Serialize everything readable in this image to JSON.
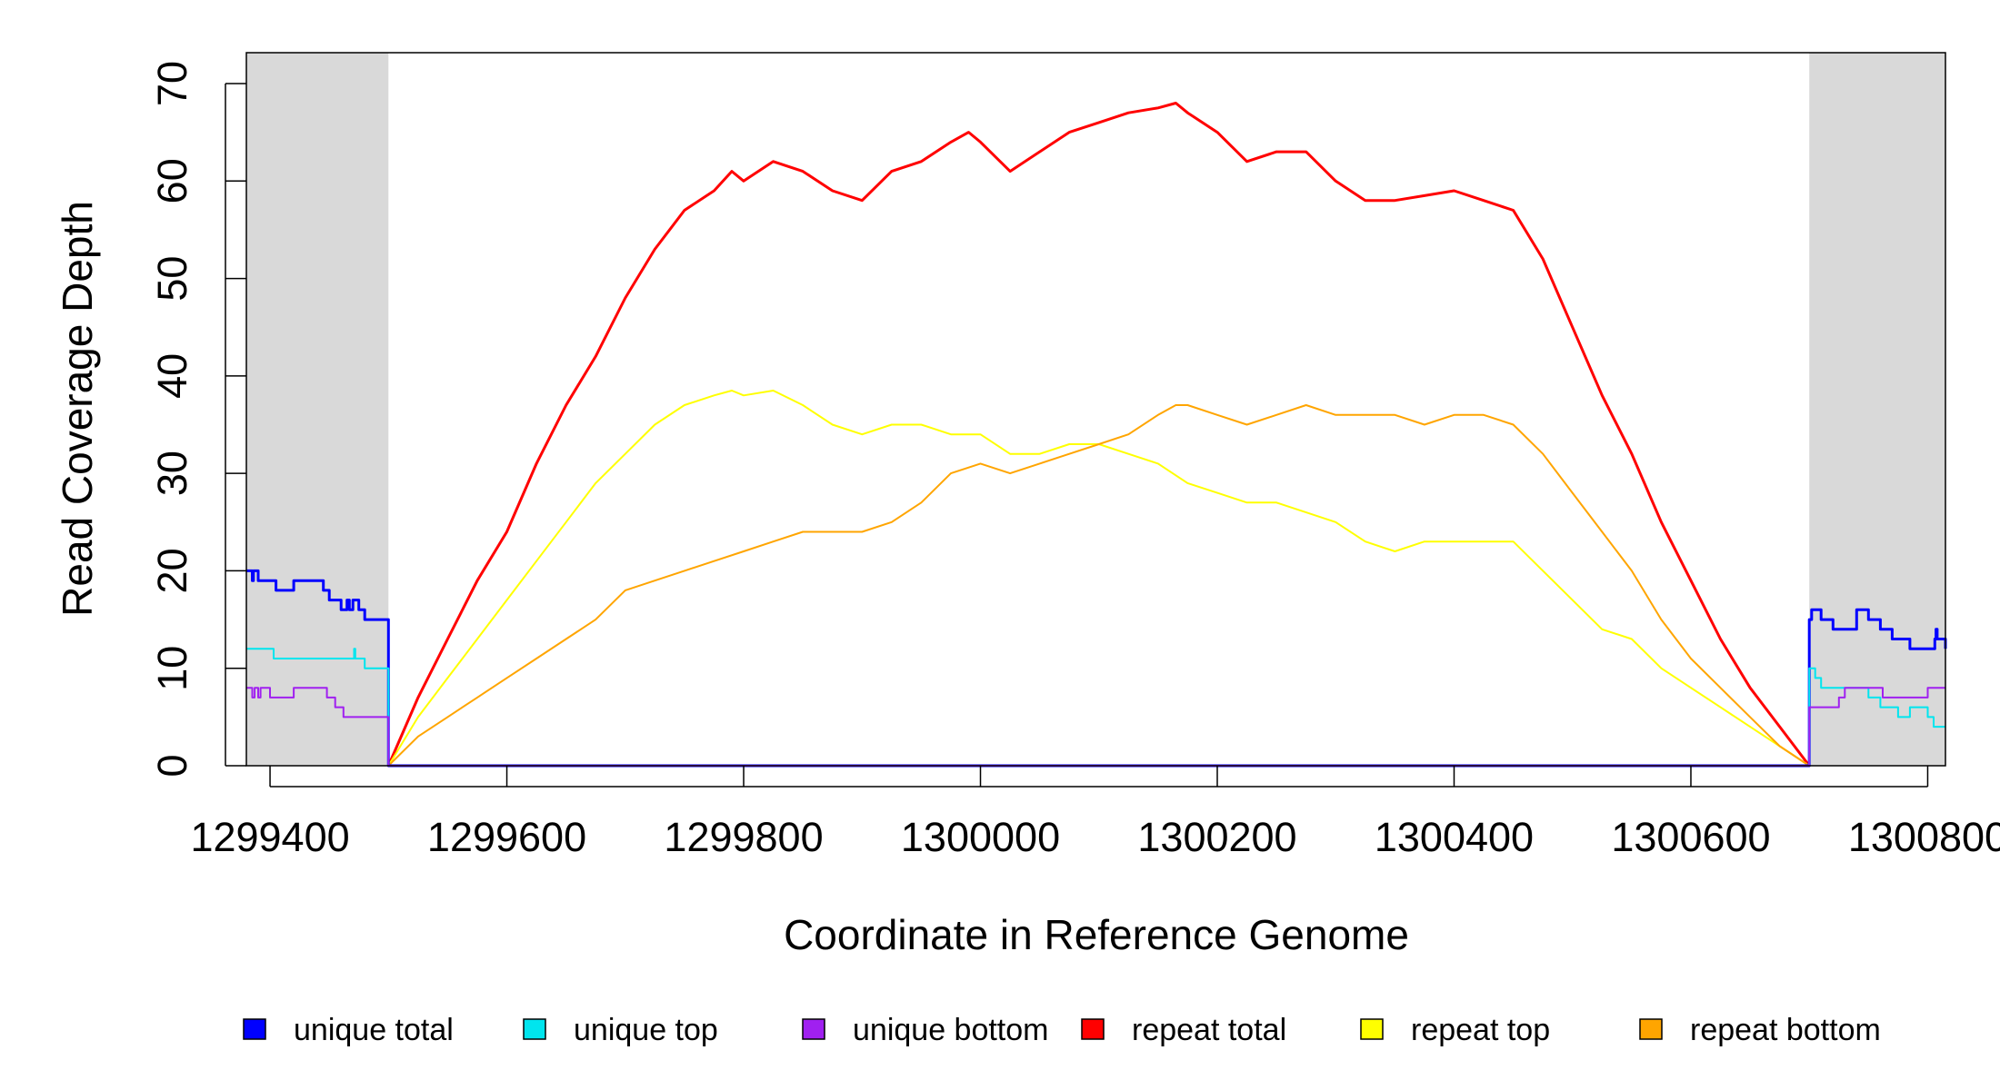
{
  "chart_data": {
    "type": "line",
    "title": "",
    "xlabel": "Coordinate in Reference Genome",
    "ylabel": "Read Coverage Depth",
    "xlim": [
      1299380,
      1300815
    ],
    "ylim": [
      0,
      73
    ],
    "x_ticks": [
      1299400,
      1299600,
      1299800,
      1300000,
      1300200,
      1300400,
      1300600,
      1300800
    ],
    "x_tick_labels": [
      "1299400",
      "1299600",
      "1299800",
      "1300000",
      "1300200",
      "1300400",
      "1300600",
      "1300800"
    ],
    "y_ticks": [
      0,
      10,
      20,
      30,
      40,
      50,
      60,
      70
    ],
    "y_tick_labels": [
      "0",
      "10",
      "20",
      "30",
      "40",
      "50",
      "60",
      "70"
    ],
    "shaded_regions": [
      {
        "x0": 1299380,
        "x1": 1299500,
        "color": "#d9d9d9"
      },
      {
        "x0": 1300700,
        "x1": 1300815,
        "color": "#d9d9d9"
      }
    ],
    "grid": false,
    "legend_position": "bottom",
    "series": [
      {
        "name": "unique total",
        "color": "#0000ff",
        "width": 3,
        "step": true,
        "x": [
          1299380,
          1299385,
          1299386,
          1299390,
          1299405,
          1299420,
          1299445,
          1299450,
          1299455,
          1299460,
          1299465,
          1299467,
          1299470,
          1299475,
          1299480,
          1299490,
          1299500,
          1299501,
          1300699,
          1300700,
          1300701,
          1300702,
          1300704,
          1300710,
          1300720,
          1300740,
          1300745,
          1300750,
          1300760,
          1300770,
          1300780,
          1300785,
          1300806,
          1300807,
          1300808,
          1300815
        ],
        "y": [
          20,
          19,
          20,
          19,
          18,
          19,
          18,
          17,
          17,
          16,
          17,
          16,
          17,
          16,
          15,
          15,
          0,
          0,
          0,
          15,
          15,
          16,
          16,
          15,
          14,
          16,
          16,
          15,
          14,
          13,
          13,
          12,
          13,
          14,
          13,
          12
        ]
      },
      {
        "name": "unique top",
        "color": "#00e5ee",
        "width": 2,
        "step": true,
        "x": [
          1299380,
          1299403,
          1299470,
          1299471,
          1299472,
          1299473,
          1299475,
          1299480,
          1299500,
          1299501,
          1300699,
          1300700,
          1300705,
          1300710,
          1300720,
          1300740,
          1300750,
          1300760,
          1300770,
          1300775,
          1300785,
          1300790,
          1300800,
          1300805,
          1300815
        ],
        "y": [
          12,
          11,
          11,
          12,
          11,
          11,
          11,
          10,
          0,
          0,
          0,
          10,
          9,
          8,
          8,
          8,
          7,
          6,
          6,
          5,
          6,
          6,
          5,
          4,
          4
        ]
      },
      {
        "name": "unique bottom",
        "color": "#a020f0",
        "width": 2,
        "step": true,
        "x": [
          1299380,
          1299385,
          1299387,
          1299390,
          1299392,
          1299400,
          1299420,
          1299440,
          1299448,
          1299455,
          1299462,
          1299475,
          1299500,
          1299501,
          1300699,
          1300700,
          1300702,
          1300725,
          1300730,
          1300750,
          1300762,
          1300770,
          1300790,
          1300800,
          1300815
        ],
        "y": [
          8,
          7,
          8,
          7,
          8,
          7,
          8,
          8,
          7,
          6,
          5,
          5,
          0,
          0,
          0,
          6,
          6,
          7,
          8,
          8,
          7,
          7,
          7,
          8,
          8
        ]
      },
      {
        "name": "repeat total",
        "color": "#ff0000",
        "width": 3,
        "step": false,
        "x": [
          1299500,
          1299525,
          1299550,
          1299575,
          1299600,
          1299625,
          1299650,
          1299675,
          1299700,
          1299725,
          1299750,
          1299775,
          1299790,
          1299800,
          1299825,
          1299850,
          1299875,
          1299900,
          1299925,
          1299950,
          1299975,
          1299990,
          1300000,
          1300025,
          1300050,
          1300075,
          1300100,
          1300125,
          1300150,
          1300165,
          1300175,
          1300200,
          1300225,
          1300250,
          1300275,
          1300300,
          1300325,
          1300350,
          1300375,
          1300400,
          1300425,
          1300450,
          1300475,
          1300500,
          1300525,
          1300550,
          1300575,
          1300600,
          1300625,
          1300650,
          1300675,
          1300700
        ],
        "y": [
          0,
          7,
          13,
          19,
          24,
          31,
          37,
          42,
          48,
          53,
          57,
          59,
          61,
          60,
          62,
          61,
          59,
          58,
          61,
          62,
          64,
          65,
          64,
          61,
          63,
          65,
          66,
          67,
          67.5,
          68,
          67,
          65,
          62,
          63,
          63,
          60,
          58,
          58,
          58.5,
          59,
          58,
          57,
          52,
          45,
          38,
          32,
          25,
          19,
          13,
          8,
          4,
          0
        ]
      },
      {
        "name": "repeat top",
        "color": "#ffff00",
        "width": 2,
        "step": false,
        "x": [
          1299500,
          1299525,
          1299550,
          1299575,
          1299600,
          1299625,
          1299650,
          1299675,
          1299700,
          1299725,
          1299750,
          1299775,
          1299790,
          1299800,
          1299825,
          1299850,
          1299875,
          1299900,
          1299925,
          1299950,
          1299975,
          1300000,
          1300025,
          1300050,
          1300075,
          1300100,
          1300125,
          1300150,
          1300175,
          1300200,
          1300225,
          1300250,
          1300275,
          1300300,
          1300325,
          1300350,
          1300375,
          1300400,
          1300425,
          1300450,
          1300475,
          1300500,
          1300525,
          1300550,
          1300575,
          1300600,
          1300625,
          1300650,
          1300675,
          1300700
        ],
        "y": [
          0,
          5,
          9,
          13,
          17,
          21,
          25,
          29,
          32,
          35,
          37,
          38,
          38.5,
          38,
          38.5,
          37,
          35,
          34,
          35,
          35,
          34,
          34,
          32,
          32,
          33,
          33,
          32,
          31,
          29,
          28,
          27,
          27,
          26,
          25,
          23,
          22,
          23,
          23,
          23,
          23,
          20,
          17,
          14,
          13,
          10,
          8,
          6,
          4,
          2,
          0
        ]
      },
      {
        "name": "repeat bottom",
        "color": "#ffa500",
        "width": 2,
        "step": false,
        "x": [
          1299500,
          1299525,
          1299550,
          1299575,
          1299600,
          1299625,
          1299650,
          1299675,
          1299700,
          1299725,
          1299750,
          1299775,
          1299800,
          1299825,
          1299850,
          1299875,
          1299900,
          1299925,
          1299950,
          1299975,
          1300000,
          1300025,
          1300050,
          1300075,
          1300100,
          1300125,
          1300150,
          1300165,
          1300175,
          1300200,
          1300225,
          1300250,
          1300275,
          1300300,
          1300325,
          1300350,
          1300375,
          1300400,
          1300425,
          1300450,
          1300475,
          1300500,
          1300525,
          1300550,
          1300575,
          1300600,
          1300625,
          1300650,
          1300675,
          1300700
        ],
        "y": [
          0,
          3,
          5,
          7,
          9,
          11,
          13,
          15,
          18,
          19,
          20,
          21,
          22,
          23,
          24,
          24,
          24,
          25,
          27,
          30,
          31,
          30,
          31,
          32,
          33,
          34,
          36,
          37,
          37,
          36,
          35,
          36,
          37,
          36,
          36,
          36,
          35,
          36,
          36,
          35,
          32,
          28,
          24,
          20,
          15,
          11,
          8,
          5,
          2,
          0
        ]
      }
    ]
  }
}
